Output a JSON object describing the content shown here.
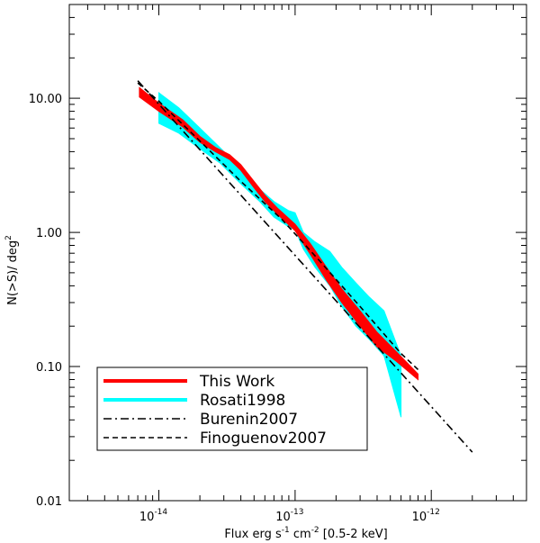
{
  "chart_data": {
    "type": "line",
    "title": "",
    "xlabel": {
      "prefix": "Flux erg s",
      "sup1": "-1",
      "mid": " cm",
      "sup2": "-2",
      "suffix": " [0.5-2 keV]"
    },
    "ylabel": {
      "prefix": "N(>S)/ deg",
      "sup": "2"
    },
    "x_scale": "log",
    "y_scale": "log",
    "xlim": [
      2.2e-15,
      5e-12
    ],
    "ylim": [
      0.01,
      50
    ],
    "x_ticks": [
      {
        "value": 1e-14,
        "base": "10",
        "exp": "-14"
      },
      {
        "value": 1e-13,
        "base": "10",
        "exp": "-13"
      },
      {
        "value": 1e-12,
        "base": "10",
        "exp": "-12"
      }
    ],
    "y_ticks": [
      {
        "value": 0.01,
        "label": "0.01"
      },
      {
        "value": 0.1,
        "label": "0.10"
      },
      {
        "value": 1,
        "label": "1.00"
      },
      {
        "value": 10,
        "label": "10.00"
      }
    ],
    "grid": false,
    "legend_position": "bottom-left",
    "series": [
      {
        "name": "Rosati1998",
        "style": "band",
        "color": "#00ffff",
        "x": [
          1e-14,
          1.4e-14,
          2e-14,
          2.8e-14,
          4e-14,
          5.5e-14,
          7e-14,
          9e-14,
          1e-13,
          1.15e-13,
          1.4e-13,
          1.8e-13,
          2.2e-13,
          2.8e-13,
          3.5e-13,
          4.5e-13,
          6e-13
        ],
        "upper": [
          11.0,
          8.5,
          6.0,
          4.3,
          3.0,
          2.1,
          1.7,
          1.45,
          1.4,
          1.0,
          0.85,
          0.72,
          0.55,
          0.42,
          0.33,
          0.26,
          0.12
        ],
        "lower": [
          6.5,
          5.5,
          4.2,
          3.3,
          2.3,
          1.7,
          1.3,
          1.1,
          1.05,
          0.75,
          0.55,
          0.4,
          0.28,
          0.2,
          0.16,
          0.12,
          0.042
        ]
      },
      {
        "name": "This Work",
        "style": "band",
        "color": "#ff0000",
        "x": [
          7.2e-15,
          1e-14,
          1.5e-14,
          2e-14,
          2.6e-14,
          3.3e-14,
          4e-14,
          5e-14,
          6e-14,
          7.5e-14,
          1e-13,
          1.3e-13,
          1.7e-13,
          2.2e-13,
          3e-13,
          4e-13,
          5.5e-13,
          8e-13
        ],
        "upper": [
          12.0,
          9.2,
          6.9,
          5.2,
          4.3,
          3.8,
          3.2,
          2.4,
          1.9,
          1.5,
          1.15,
          0.82,
          0.55,
          0.38,
          0.26,
          0.18,
          0.13,
          0.088
        ],
        "lower": [
          10.2,
          8.0,
          6.1,
          4.7,
          4.0,
          3.5,
          2.9,
          2.15,
          1.7,
          1.35,
          1.03,
          0.68,
          0.44,
          0.3,
          0.2,
          0.14,
          0.11,
          0.08
        ]
      },
      {
        "name": "Burenin2007",
        "style": "dash-dot",
        "color": "#000000",
        "x": [
          7e-15,
          2e-12
        ],
        "y": [
          13.5,
          0.023
        ]
      },
      {
        "name": "Finoguenov2007",
        "style": "dashed",
        "color": "#000000",
        "x": [
          7e-15,
          1e-14,
          2e-14,
          4e-14,
          8e-14,
          1.5e-13,
          3e-13,
          6e-13,
          8e-13
        ],
        "y": [
          13.0,
          9.5,
          4.8,
          2.4,
          1.25,
          0.62,
          0.28,
          0.125,
          0.095
        ]
      }
    ],
    "legend": [
      {
        "label": "This Work",
        "style": "thick",
        "color": "#ff0000"
      },
      {
        "label": "Rosati1998",
        "style": "thick",
        "color": "#00ffff"
      },
      {
        "label": "Burenin2007",
        "style": "dash-dot",
        "color": "#000000"
      },
      {
        "label": "Finoguenov2007",
        "style": "dashed",
        "color": "#000000"
      }
    ]
  }
}
